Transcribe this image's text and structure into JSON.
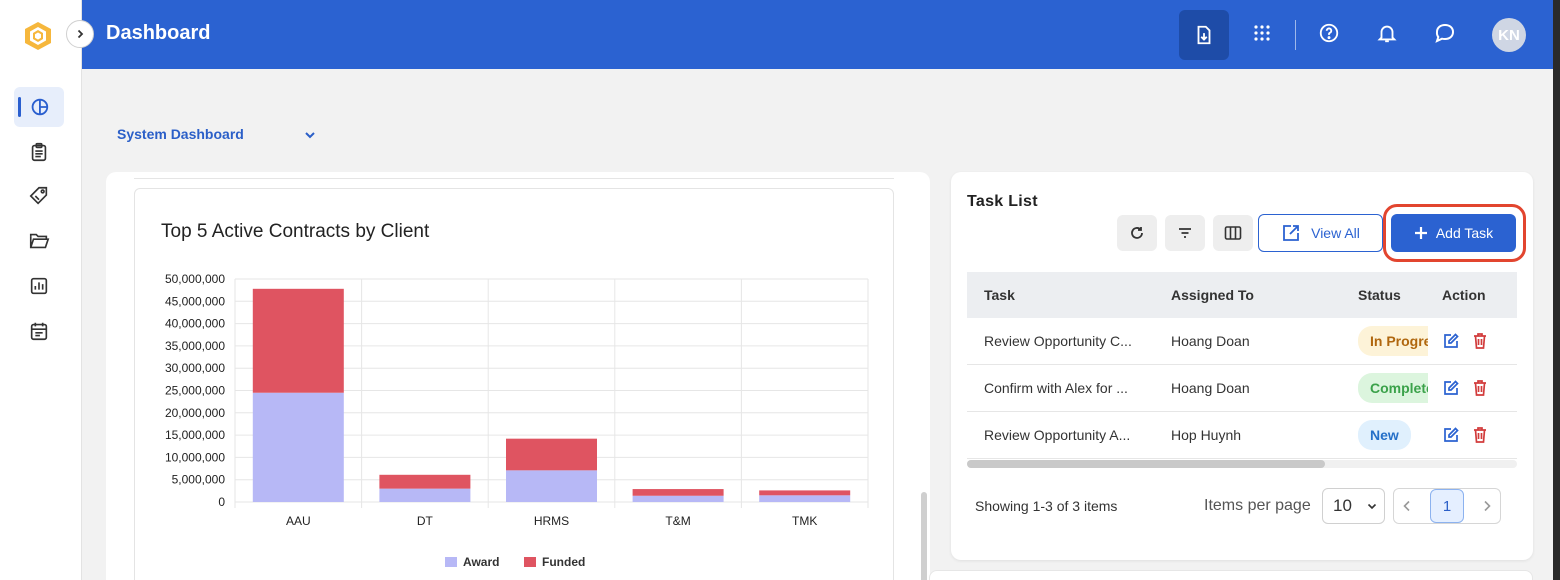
{
  "header": {
    "title": "Dashboard",
    "avatar_initials": "KN",
    "icons": [
      "download-doc-icon",
      "apps-grid-icon",
      "help-icon",
      "bell-icon",
      "chat-icon"
    ]
  },
  "sidebar": {
    "items": [
      {
        "name": "dashboard-icon",
        "active": true
      },
      {
        "name": "clipboard-icon",
        "active": false
      },
      {
        "name": "tag-icon",
        "active": false
      },
      {
        "name": "folder-icon",
        "active": false
      },
      {
        "name": "report-icon",
        "active": false
      },
      {
        "name": "calendar-icon",
        "active": false
      }
    ]
  },
  "dashboard_select": {
    "label": "System Dashboard"
  },
  "chart_data": {
    "type": "bar",
    "stacked": true,
    "title": "Top 5 Active Contracts by Client",
    "categories": [
      "AAU",
      "DT",
      "HRMS",
      "T&M",
      "TMK"
    ],
    "series": [
      {
        "name": "Award",
        "color": "#b7b8f6",
        "values": [
          24500000,
          3000000,
          7100000,
          1400000,
          1500000
        ]
      },
      {
        "name": "Funded",
        "color": "#df5461",
        "values": [
          23300000,
          3100000,
          7100000,
          1500000,
          1100000
        ]
      }
    ],
    "ylim": [
      0,
      50000000
    ],
    "yticks": [
      "0",
      "5,000,000",
      "10,000,000",
      "15,000,000",
      "20,000,000",
      "25,000,000",
      "30,000,000",
      "35,000,000",
      "40,000,000",
      "45,000,000",
      "50,000,000"
    ],
    "legend_position": "bottom",
    "grid": true
  },
  "tasks": {
    "title": "Task List",
    "view_all_label": "View All",
    "add_task_label": "Add Task",
    "columns": [
      "Task",
      "Assigned To",
      "Status",
      "Action"
    ],
    "rows": [
      {
        "task": "Review Opportunity C...",
        "assigned": "Hoang Doan",
        "status": "In Progress",
        "status_kind": "prog"
      },
      {
        "task": "Confirm with Alex for ...",
        "assigned": "Hoang Doan",
        "status": "Completed",
        "status_kind": "comp"
      },
      {
        "task": "Review Opportunity A...",
        "assigned": "Hop Huynh",
        "status": "New",
        "status_kind": "new"
      }
    ],
    "showing_text": "Showing 1-3 of 3 items",
    "items_per_page_label": "Items per page",
    "items_per_page_value": "10",
    "current_page": "1"
  }
}
